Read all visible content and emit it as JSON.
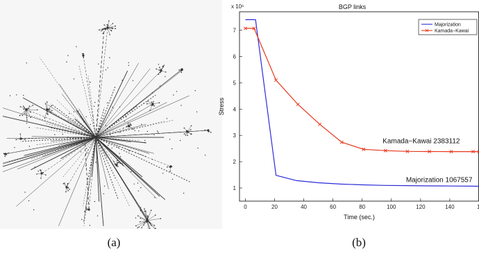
{
  "captions": {
    "a": "(a)",
    "b": "(b)"
  },
  "colors": {
    "majorization": "#2b2bd8",
    "kamada_kawai": "#e8351a",
    "graph": "#333333"
  },
  "chart_data": {
    "type": "line",
    "title": "BGP links",
    "xlabel": "Time (sec.)",
    "ylabel": "Stress",
    "y_multiplier_label": "x 10⁶",
    "xlim": [
      -4,
      160
    ],
    "ylim": [
      0.5,
      7.7
    ],
    "x_ticks": [
      0,
      20,
      40,
      60,
      80,
      100,
      120,
      140
    ],
    "x_tick_labels": [
      "0",
      "20",
      "40",
      "60",
      "80",
      "100",
      "120",
      "140"
    ],
    "x_tick_label_cut": "16",
    "y_ticks": [
      1,
      2,
      3,
      4,
      5,
      6,
      7
    ],
    "y_tick_labels": [
      "1",
      "2",
      "3",
      "4",
      "5",
      "6",
      "7"
    ],
    "legend_position": "top-right",
    "series": [
      {
        "name": "Majorization",
        "color": "#2b2bd8",
        "marker": "none",
        "x": [
          0,
          7,
          21,
          35,
          50,
          65,
          80,
          95,
          110,
          125,
          140,
          160
        ],
        "y": [
          7.4,
          7.4,
          1.48,
          1.28,
          1.2,
          1.15,
          1.12,
          1.1,
          1.09,
          1.08,
          1.075,
          1.068
        ]
      },
      {
        "name": "Kamada−Kawai",
        "color": "#e8351a",
        "marker": "x",
        "x": [
          0,
          6,
          21,
          36,
          51,
          66,
          81,
          96,
          111,
          126,
          141,
          156,
          160
        ],
        "y": [
          7.07,
          7.07,
          5.1,
          4.18,
          3.42,
          2.74,
          2.47,
          2.42,
          2.39,
          2.385,
          2.383,
          2.383,
          2.383
        ]
      }
    ],
    "annotations": [
      {
        "text": "Kamada−Kawai 2383112",
        "x": 94,
        "y": 2.7
      },
      {
        "text": "Majorization 1067557",
        "x": 110,
        "y": 1.23
      }
    ]
  }
}
